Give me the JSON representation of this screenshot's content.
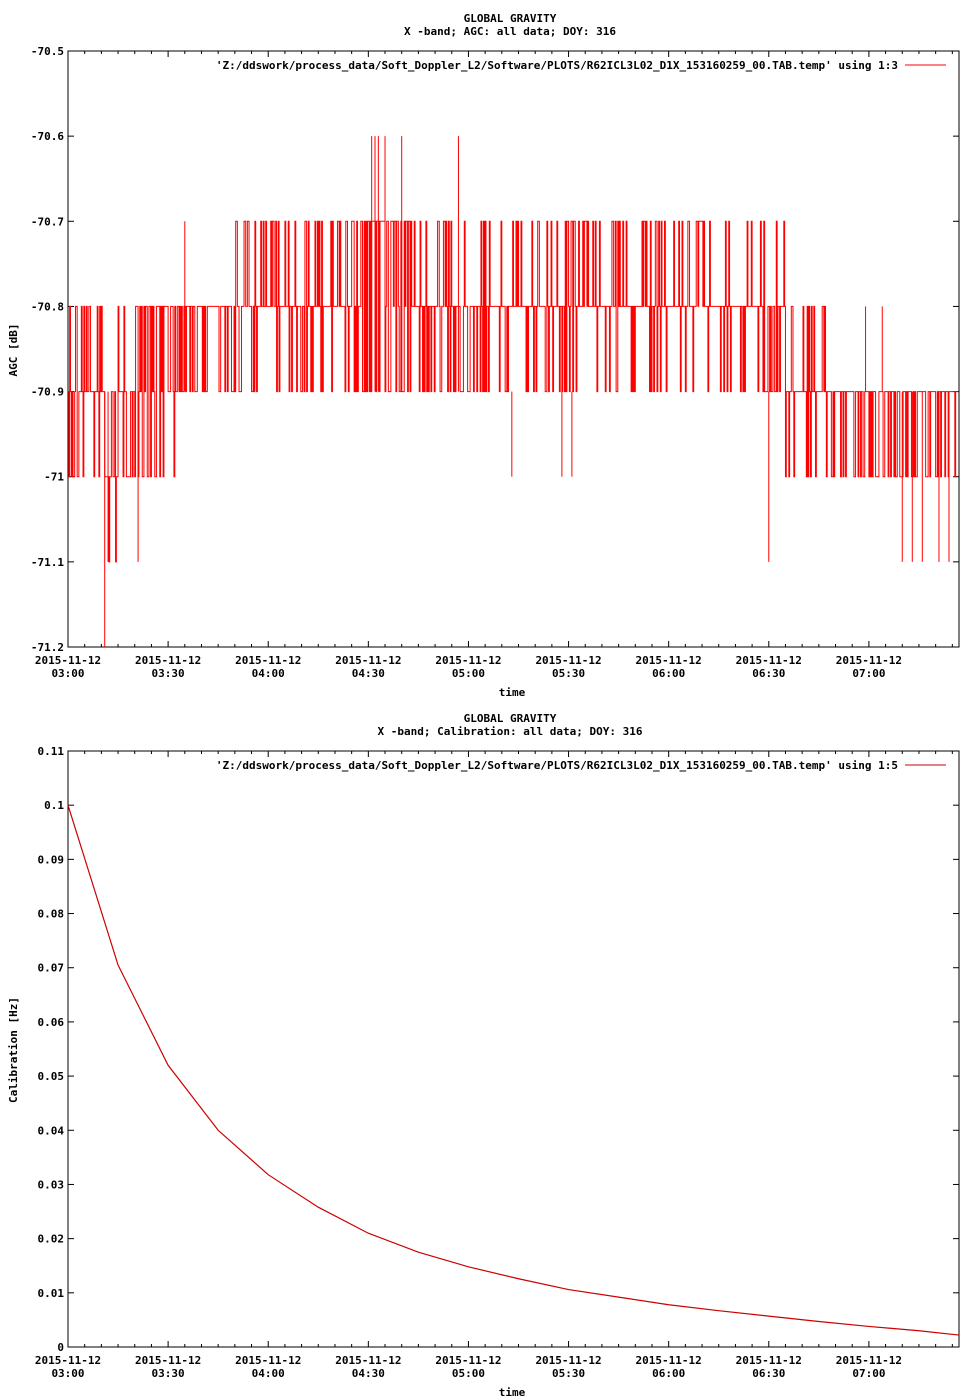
{
  "chart_data": [
    {
      "type": "line",
      "title": "GLOBAL GRAVITY",
      "subtitle": "X -band; AGC: all data; DOY: 316",
      "xlabel": "time",
      "ylabel": "AGC [dB]",
      "ylim": [
        -71.2,
        -70.5
      ],
      "yticks": [
        -70.5,
        -70.6,
        -70.7,
        -70.8,
        -70.9,
        -71,
        -71.1,
        -71.2
      ],
      "ytick_labels": [
        "-70.5",
        "-70.6",
        "-70.7",
        "-70.8",
        "-70.9",
        "-71",
        "-71.1",
        "-71.2"
      ],
      "xlim_minutes": [
        180,
        447
      ],
      "xticks_minutes": [
        180,
        210,
        240,
        270,
        300,
        330,
        360,
        390,
        420
      ],
      "xtick_labels": [
        [
          "2015-11-12",
          "03:00"
        ],
        [
          "2015-11-12",
          "03:30"
        ],
        [
          "2015-11-12",
          "04:00"
        ],
        [
          "2015-11-12",
          "04:30"
        ],
        [
          "2015-11-12",
          "05:00"
        ],
        [
          "2015-11-12",
          "05:30"
        ],
        [
          "2015-11-12",
          "06:00"
        ],
        [
          "2015-11-12",
          "06:30"
        ],
        [
          "2015-11-12",
          "07:00"
        ]
      ],
      "grid": false,
      "legend_position": "top-right",
      "series": [
        {
          "name": "'Z:/ddswork/process_data/Soft_Doppler_L2/Software/PLOTS/R62ICL3L02_D1X_153160259_00.TAB.temp' using 1:3",
          "color": "#ff0000",
          "style": "dense-noise",
          "segments": [
            {
              "from": 180,
              "to": 191,
              "base": -70.95,
              "lo": -71.0,
              "hi": -70.8
            },
            {
              "from": 191,
              "to": 195,
              "base": -71.05,
              "lo": -71.1,
              "hi": -70.9
            },
            {
              "from": 195,
              "to": 200,
              "base": -70.95,
              "lo": -71.0,
              "hi": -70.8
            },
            {
              "from": 200,
              "to": 214,
              "base": -70.85,
              "lo": -71.0,
              "hi": -70.8
            },
            {
              "from": 214,
              "to": 230,
              "base": -70.85,
              "lo": -70.9,
              "hi": -70.8
            },
            {
              "from": 230,
              "to": 265,
              "base": -70.8,
              "lo": -70.9,
              "hi": -70.7
            },
            {
              "from": 265,
              "to": 283,
              "base": -70.75,
              "lo": -70.9,
              "hi": -70.7
            },
            {
              "from": 283,
              "to": 340,
              "base": -70.8,
              "lo": -70.9,
              "hi": -70.7
            },
            {
              "from": 340,
              "to": 395,
              "base": -70.85,
              "lo": -70.9,
              "hi": -70.7
            },
            {
              "from": 395,
              "to": 407,
              "base": -70.9,
              "lo": -71.0,
              "hi": -70.8
            },
            {
              "from": 407,
              "to": 447,
              "base": -70.95,
              "lo": -71.0,
              "hi": -70.9
            }
          ],
          "spikes": [
            [
              191,
              -71.2
            ],
            [
              192,
              -71.1
            ],
            [
              201,
              -71.1
            ],
            [
              185,
              -70.8
            ],
            [
              215,
              -70.7
            ],
            [
              271,
              -70.6
            ],
            [
              272,
              -70.6
            ],
            [
              273,
              -70.6
            ],
            [
              275,
              -70.6
            ],
            [
              280,
              -70.6
            ],
            [
              297,
              -70.6
            ],
            [
              313,
              -71.0
            ],
            [
              328,
              -71.0
            ],
            [
              331,
              -71.0
            ],
            [
              339,
              -70.9
            ],
            [
              390,
              -71.1
            ],
            [
              430,
              -71.1
            ],
            [
              433,
              -71.1
            ],
            [
              436,
              -71.1
            ],
            [
              441,
              -71.1
            ],
            [
              444,
              -71.1
            ],
            [
              419,
              -70.8
            ],
            [
              424,
              -70.8
            ]
          ]
        }
      ]
    },
    {
      "type": "line",
      "title": "GLOBAL GRAVITY",
      "subtitle": "X -band; Calibration: all data; DOY: 316",
      "xlabel": "time",
      "ylabel": "Calibration [Hz]",
      "ylim": [
        0,
        0.11
      ],
      "yticks": [
        0,
        0.01,
        0.02,
        0.03,
        0.04,
        0.05,
        0.06,
        0.07,
        0.08,
        0.09,
        0.1,
        0.11
      ],
      "ytick_labels": [
        "0",
        "0.01",
        "0.02",
        "0.03",
        "0.04",
        "0.05",
        "0.06",
        "0.07",
        "0.08",
        "0.09",
        "0.1",
        "0.11"
      ],
      "xlim_minutes": [
        180,
        447
      ],
      "xticks_minutes": [
        180,
        210,
        240,
        270,
        300,
        330,
        360,
        390,
        420
      ],
      "xtick_labels": [
        [
          "2015-11-12",
          "03:00"
        ],
        [
          "2015-11-12",
          "03:30"
        ],
        [
          "2015-11-12",
          "04:00"
        ],
        [
          "2015-11-12",
          "04:30"
        ],
        [
          "2015-11-12",
          "05:00"
        ],
        [
          "2015-11-12",
          "05:30"
        ],
        [
          "2015-11-12",
          "06:00"
        ],
        [
          "2015-11-12",
          "06:30"
        ],
        [
          "2015-11-12",
          "07:00"
        ]
      ],
      "grid": false,
      "legend_position": "top-right",
      "series": [
        {
          "name": "'Z:/ddswork/process_data/Soft_Doppler_L2/Software/PLOTS/R62ICL3L02_D1X_153160259_00.TAB.temp' using 1:5",
          "color": "#cc0000",
          "style": "line",
          "x_minutes": [
            180,
            195,
            210,
            225,
            240,
            255,
            270,
            285,
            300,
            315,
            330,
            345,
            360,
            375,
            390,
            405,
            420,
            435,
            447
          ],
          "values": [
            0.1,
            0.0705,
            0.052,
            0.04,
            0.0318,
            0.0258,
            0.021,
            0.0175,
            0.0148,
            0.0126,
            0.0106,
            0.0092,
            0.0078,
            0.0067,
            0.0057,
            0.0047,
            0.0038,
            0.003,
            0.0022
          ]
        }
      ]
    }
  ]
}
